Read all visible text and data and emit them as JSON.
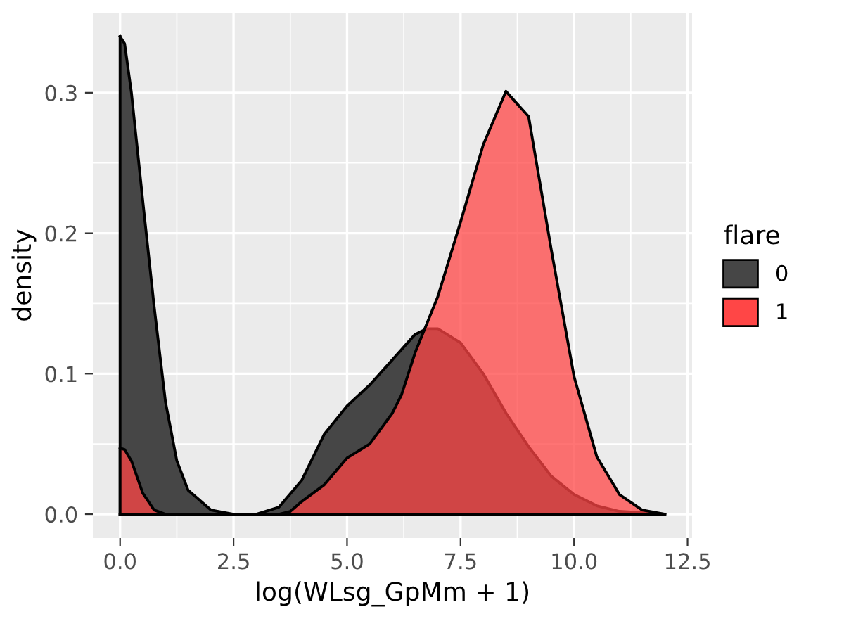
{
  "chart_data": {
    "type": "area",
    "xlabel": "log(WLsg_GpMm + 1)",
    "ylabel": "density",
    "legend_title": "flare",
    "legend": "right",
    "grid": true,
    "xlim": [
      -0.6,
      12.6
    ],
    "ylim": [
      -0.017,
      0.357
    ],
    "xticks": [
      {
        "value": 0,
        "label": "0.0"
      },
      {
        "value": 2.5,
        "label": "2.5"
      },
      {
        "value": 5,
        "label": "5.0"
      },
      {
        "value": 7.5,
        "label": "7.5"
      },
      {
        "value": 10,
        "label": "10.0"
      },
      {
        "value": 12.5,
        "label": "12.5"
      }
    ],
    "yticks": [
      {
        "value": 0,
        "label": "0.0"
      },
      {
        "value": 0.1,
        "label": "0.1"
      },
      {
        "value": 0.2,
        "label": "0.2"
      },
      {
        "value": 0.3,
        "label": "0.3"
      }
    ],
    "series": [
      {
        "name": "0",
        "color": "#464646",
        "x": [
          0,
          0.1,
          0.25,
          0.5,
          0.75,
          1,
          1.25,
          1.5,
          2,
          2.5,
          3,
          3.5,
          4,
          4.5,
          5,
          5.5,
          6,
          6.5,
          6.75,
          7,
          7.5,
          8,
          8.5,
          9,
          9.5,
          10,
          10.5,
          11,
          11.5,
          12
        ],
        "values": [
          0.34,
          0.335,
          0.3,
          0.223,
          0.148,
          0.08,
          0.038,
          0.017,
          0.003,
          0,
          0,
          0.005,
          0.024,
          0.057,
          0.077,
          0.092,
          0.11,
          0.128,
          0.132,
          0.132,
          0.122,
          0.1,
          0.072,
          0.048,
          0.027,
          0.014,
          0.006,
          0.002,
          0.001,
          0
        ]
      },
      {
        "name": "1",
        "color": "#ff4646",
        "x": [
          0,
          0.1,
          0.25,
          0.5,
          0.75,
          1,
          1.5,
          2,
          2.5,
          3,
          3.5,
          3.75,
          4,
          4.5,
          5,
          5.5,
          6,
          6.2,
          6.5,
          7,
          7.5,
          8,
          8.5,
          9,
          9.5,
          10,
          10.5,
          11,
          11.5,
          12
        ],
        "values": [
          0.047,
          0.046,
          0.038,
          0.015,
          0.003,
          0,
          0,
          0,
          0,
          0,
          0,
          0.002,
          0.009,
          0.021,
          0.04,
          0.05,
          0.072,
          0.085,
          0.115,
          0.155,
          0.208,
          0.263,
          0.301,
          0.283,
          0.188,
          0.098,
          0.041,
          0.014,
          0.003,
          0
        ]
      }
    ]
  }
}
